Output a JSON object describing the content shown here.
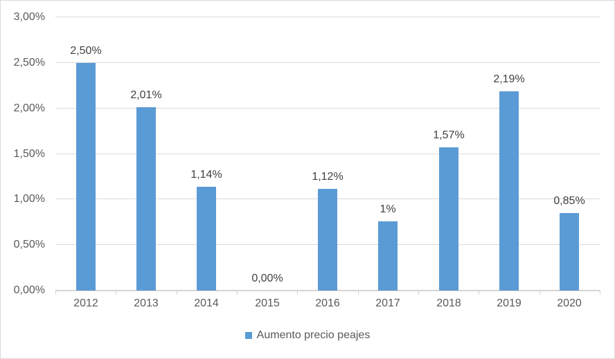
{
  "chart": {
    "colors": {
      "bar": "#5b9bd5",
      "gridline": "#d9d9d9",
      "axis_line": "#d0d0d0",
      "axis_text": "#595959",
      "data_label_text": "#404040",
      "border": "#d9d9d9",
      "background": "#ffffff"
    }
  },
  "chart_data": {
    "type": "bar",
    "title": "",
    "series_name": "Aumento precio peajes",
    "categories": [
      "2012",
      "2013",
      "2014",
      "2015",
      "2016",
      "2017",
      "2018",
      "2019",
      "2020"
    ],
    "values": [
      2.5,
      2.01,
      1.14,
      0.0,
      1.12,
      0.76,
      1.57,
      2.19,
      0.85
    ],
    "data_labels": [
      "2,50%",
      "2,01%",
      "1,14%",
      "0,00%",
      "1,12%",
      "1%",
      "1,57%",
      "2,19%",
      "0,85%"
    ],
    "ylim": [
      0,
      3
    ],
    "ytick_step": 0.5,
    "ytick_labels": [
      "0,00%",
      "0,50%",
      "1,00%",
      "1,50%",
      "2,00%",
      "2,50%",
      "3,00%"
    ],
    "grid": true,
    "legend_position": "bottom"
  }
}
